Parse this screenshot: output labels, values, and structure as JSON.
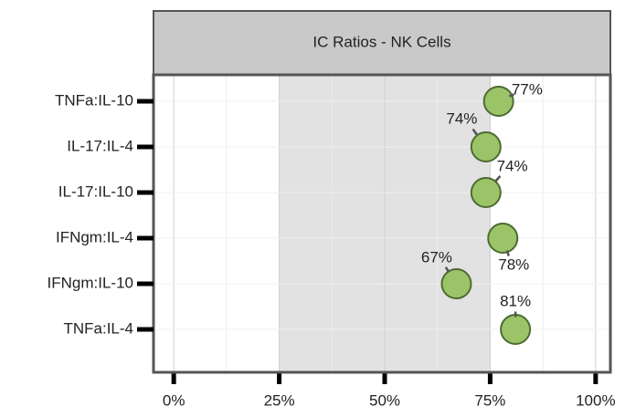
{
  "chart_data": {
    "type": "dot",
    "title": "IC Ratios - NK Cells",
    "categories": [
      "TNFa:IL-10",
      "IL-17:IL-4",
      "IL-17:IL-10",
      "IFNgm:IL-4",
      "IFNgm:IL-10",
      "TNFa:IL-4"
    ],
    "values": [
      77,
      74,
      74,
      78,
      67,
      81
    ],
    "value_labels": [
      "77%",
      "74%",
      "74%",
      "78%",
      "67%",
      "81%"
    ],
    "color": "#9bc468",
    "xlim": [
      -4.8,
      103.5
    ],
    "xticks": [
      {
        "value": 0,
        "label": "0%"
      },
      {
        "value": 25,
        "label": "25%"
      },
      {
        "value": 50,
        "label": "50%"
      },
      {
        "value": 75,
        "label": "75%"
      },
      {
        "value": 100,
        "label": "100%"
      }
    ],
    "shaded_range": [
      25,
      75
    ],
    "grid": true
  }
}
